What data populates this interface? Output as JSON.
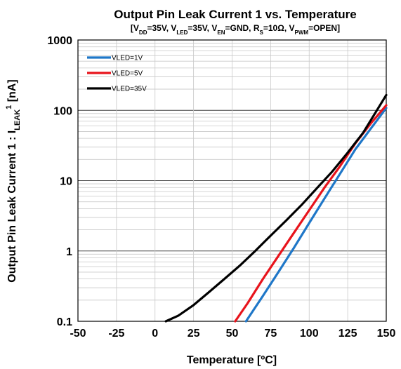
{
  "chart_data": {
    "type": "line",
    "title": "Output Pin Leak Current 1 vs. Temperature",
    "subtitle_parts": [
      {
        "t": "[V",
        "s": ""
      },
      {
        "t": "DD",
        "s": "sub"
      },
      {
        "t": "=35V, V",
        "s": ""
      },
      {
        "t": "LED",
        "s": "sub"
      },
      {
        "t": "=35V, V",
        "s": ""
      },
      {
        "t": "EN",
        "s": "sub"
      },
      {
        "t": "=GND, R",
        "s": ""
      },
      {
        "t": "S",
        "s": "sub"
      },
      {
        "t": "=10Ω, V",
        "s": ""
      },
      {
        "t": "PWM",
        "s": "sub"
      },
      {
        "t": "=OPEN]",
        "s": ""
      }
    ],
    "xlabel": "Temperature [ºC]",
    "ylabel_parts": [
      {
        "t": "Output Pin Leak Current 1 : I",
        "s": ""
      },
      {
        "t": "LEAK",
        "s": "sub"
      },
      {
        "t": "1",
        "s": "sup"
      },
      {
        "t": " [nA]",
        "s": ""
      }
    ],
    "xlim": [
      -50,
      150
    ],
    "ylim": [
      0.1,
      1000
    ],
    "yscale": "log",
    "grid": true,
    "legend_position": "top-left",
    "x_ticks": [
      -50,
      -25,
      0,
      25,
      50,
      75,
      100,
      125,
      150
    ],
    "x_tick_labels": [
      "-50",
      "-25",
      "0",
      "25",
      "50",
      "75",
      "100",
      "125",
      "150"
    ],
    "y_ticks": [
      0.1,
      1,
      10,
      100,
      1000
    ],
    "y_tick_labels": [
      "0.1",
      "1",
      "10",
      "100",
      "1000"
    ],
    "series": [
      {
        "name": "VLED=1V",
        "color": "#1f77c8",
        "x": [
          59,
          70,
          80,
          90,
          100,
          110,
          120,
          130,
          140,
          150
        ],
        "y": [
          0.1,
          0.23,
          0.5,
          1.1,
          2.5,
          5.6,
          12.5,
          28,
          55,
          108
        ]
      },
      {
        "name": "VLED=5V",
        "color": "#e8141c",
        "x": [
          52,
          60,
          70,
          80,
          90,
          100,
          110,
          120,
          130,
          140,
          150
        ],
        "y": [
          0.1,
          0.18,
          0.4,
          0.85,
          1.8,
          3.8,
          8,
          16,
          34,
          65,
          118
        ]
      },
      {
        "name": "VLED=35V",
        "color": "#000000",
        "x": [
          7,
          15,
          25,
          35,
          45,
          55,
          65,
          75,
          85,
          95,
          105,
          115,
          125,
          135,
          150
        ],
        "y": [
          0.1,
          0.12,
          0.17,
          0.26,
          0.4,
          0.62,
          1.0,
          1.65,
          2.7,
          4.5,
          7.8,
          13.5,
          25,
          48,
          165
        ]
      }
    ]
  }
}
